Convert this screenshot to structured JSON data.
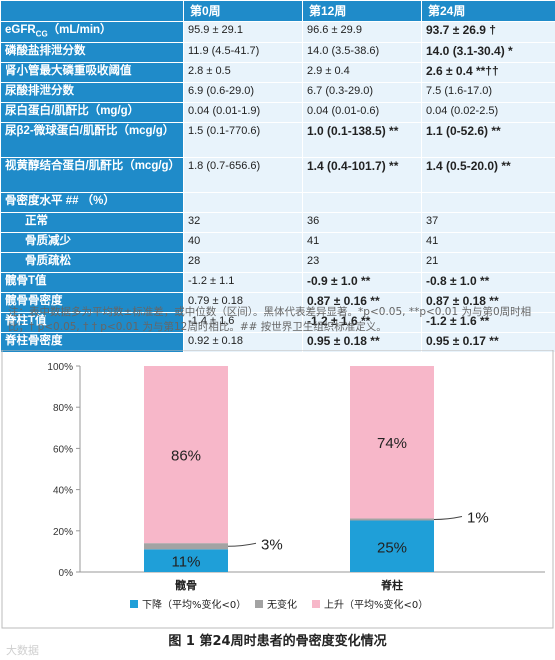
{
  "table": {
    "columns": [
      "",
      "第0周",
      "第12周",
      "第24周"
    ],
    "rows": [
      {
        "label": "eGFR",
        "label_sub": "CG",
        "label_suffix": "（mL/min）",
        "cells": [
          "95.9 ± 29.1",
          "96.6 ± 29.9",
          "93.7 ± 26.9 †"
        ],
        "bold": [
          false,
          false,
          true
        ]
      },
      {
        "label": "磷酸盐排泄分数",
        "cells": [
          "11.9 (4.5-41.7)",
          "14.0 (3.5-38.6)",
          "14.0 (3.1-30.4) *"
        ],
        "bold": [
          false,
          false,
          true
        ]
      },
      {
        "label": "肾小管最大磷重吸收阈值",
        "cells": [
          "2.8 ± 0.5",
          "2.9 ± 0.4",
          "2.6 ± 0.4 **††"
        ],
        "bold": [
          false,
          false,
          true
        ]
      },
      {
        "label": "尿酸排泄分数",
        "cells": [
          "6.9 (0.6-29.0)",
          "6.7 (0.3-29.0)",
          "7.5 (1.6-17.0)"
        ],
        "bold": [
          false,
          false,
          false
        ]
      },
      {
        "label": "尿白蛋白/肌酐比（mg/g）",
        "cells": [
          "0.04 (0.01-1.9)",
          "0.04 (0.01-0.6)",
          "0.04 (0.02-2.5)"
        ],
        "bold": [
          false,
          false,
          false
        ]
      },
      {
        "label": "尿β2-微球蛋白/肌酐比（mcg/g）",
        "cells": [
          "1.5 (0.1-770.6)",
          "1.0 (0.1-138.5) **",
          "1.1 (0-52.6) **"
        ],
        "bold": [
          false,
          true,
          true
        ],
        "tall": true
      },
      {
        "label": "视黄醇结合蛋白/肌酐比（mcg/g）",
        "cells": [
          "1.8 (0.7-656.6)",
          "1.4 (0.4-101.7) **",
          "1.4 (0.5-20.0) **"
        ],
        "bold": [
          false,
          true,
          true
        ],
        "tall": true
      },
      {
        "label": "骨密度水平 ## （%）",
        "cells": [
          "",
          "",
          ""
        ],
        "bold": [
          false,
          false,
          false
        ]
      },
      {
        "label": "正常",
        "sub": true,
        "cells": [
          "32",
          "36",
          "37"
        ],
        "bold": [
          false,
          false,
          false
        ]
      },
      {
        "label": "骨质减少",
        "sub": true,
        "cells": [
          "40",
          "41",
          "41"
        ],
        "bold": [
          false,
          false,
          false
        ]
      },
      {
        "label": "骨质疏松",
        "sub": true,
        "cells": [
          "28",
          "23",
          "21"
        ],
        "bold": [
          false,
          false,
          false
        ]
      },
      {
        "label": "髋骨T值",
        "cells": [
          "-1.2 ± 1.1",
          "-0.9 ± 1.0 **",
          "-0.8 ± 1.0 **"
        ],
        "bold": [
          false,
          true,
          true
        ]
      },
      {
        "label": "髋骨骨密度",
        "cells": [
          "0.79 ± 0.18",
          "0.87 ± 0.16 **",
          "0.87 ± 0.18 **"
        ],
        "bold": [
          false,
          true,
          true
        ]
      },
      {
        "label": "脊柱T值",
        "cells": [
          "-1.4 ± 1.6",
          "-1.2 ± 1.6 **",
          "-1.2 ± 1.6 **"
        ],
        "bold": [
          false,
          true,
          true
        ]
      },
      {
        "label": "脊柱骨密度",
        "cells": [
          "0.92 ± 0.18",
          "0.95 ± 0.18 **",
          "0.95 ± 0.17 **"
        ],
        "bold": [
          false,
          true,
          true
        ]
      }
    ]
  },
  "footnote": "注：表中数据多为平均数±标准差，或中位数（区间）。黑体代表差异显著。*p<0.05, **p<0.01 为与第0周时相比；† p<0.05, † † p<0.01 为与第12周时相比。## 按世界卫生组织标准定义。",
  "chart_data": {
    "type": "bar",
    "stacked": true,
    "categories": [
      "髋骨",
      "脊柱"
    ],
    "series": [
      {
        "name": "下降（平均%变化<0）",
        "values": [
          11,
          25
        ],
        "color": "#1f9fd8"
      },
      {
        "name": "无变化",
        "values": [
          3,
          1
        ],
        "color": "#a3a3a3"
      },
      {
        "name": "上升（平均%变化<0）",
        "values": [
          86,
          74
        ],
        "color": "#f7b7c9"
      }
    ],
    "data_labels": [
      {
        "series": 0,
        "labels": [
          "11%",
          "25%"
        ]
      },
      {
        "series": 1,
        "labels": [
          "3%",
          "1%"
        ]
      },
      {
        "series": 2,
        "labels": [
          "86%",
          "74%"
        ]
      }
    ],
    "yticks": [
      "0%",
      "20%",
      "40%",
      "60%",
      "80%",
      "100%"
    ],
    "ylim": [
      0,
      100
    ],
    "legend_position": "bottom"
  },
  "caption": "图 1  第24周时患者的骨密度变化情况",
  "watermark": "大数据"
}
